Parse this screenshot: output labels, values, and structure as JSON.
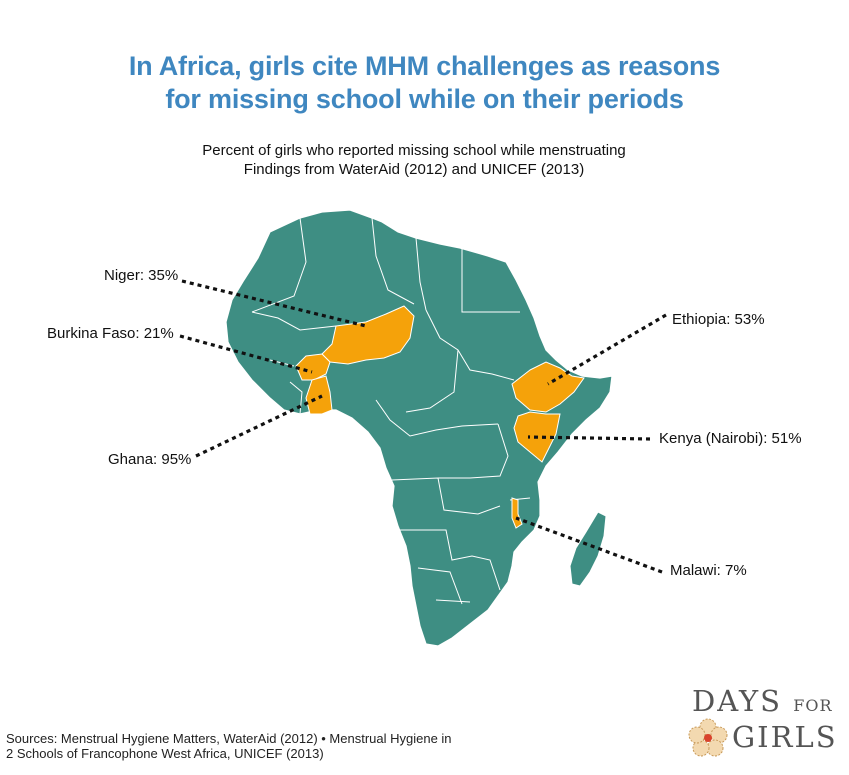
{
  "title": {
    "line1": "In Africa, girls cite MHM challenges as reasons",
    "line2": "for missing school while on their periods"
  },
  "subtitle": {
    "line1": "Percent of girls who reported missing school while menstruating",
    "line2": "Findings from WaterAid (2012) and UNICEF (2013)"
  },
  "colors": {
    "land": "#3e8e83",
    "highlight": "#f5a20a",
    "title": "#3f87c0",
    "border": "#ffffff"
  },
  "countries": [
    {
      "name": "Niger",
      "value": 35,
      "label": "Niger: 35%"
    },
    {
      "name": "Burkina Faso",
      "value": 21,
      "label": "Burkina Faso: 21%"
    },
    {
      "name": "Ghana",
      "value": 95,
      "label": "Ghana: 95%"
    },
    {
      "name": "Ethiopia",
      "value": 53,
      "label": "Ethiopia: 53%"
    },
    {
      "name": "Kenya (Nairobi)",
      "value": 51,
      "label": "Kenya (Nairobi): 51%"
    },
    {
      "name": "Malawi",
      "value": 7,
      "label": "Malawi: 7%"
    }
  ],
  "sources": {
    "line1": "Sources: Menstrual Hygiene Matters, WaterAid (2012) • Menstrual Hygiene in",
    "line2": "2 Schools of Francophone West Africa, UNICEF (2013)"
  },
  "logo": {
    "word1": "DAYS",
    "word2": "FOR",
    "word3": "GIRLS"
  }
}
